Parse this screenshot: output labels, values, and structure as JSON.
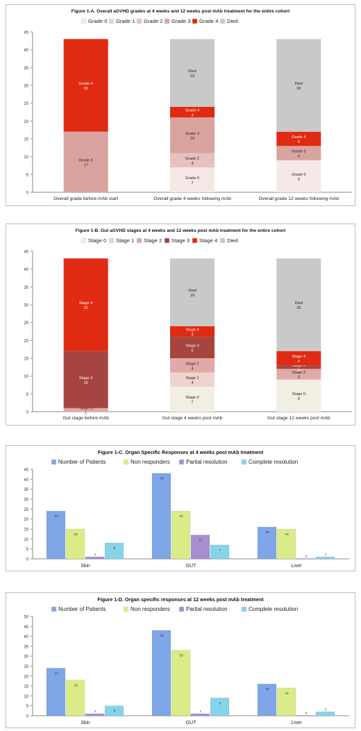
{
  "colors": {
    "grade0": "#f5e8e6",
    "grade1": "#f1d2cf",
    "grade2": "#e8c0bd",
    "grade3": "#d9a4a0",
    "grade4": "#e02a12",
    "died": "#c9c9c9",
    "stage0": "#f1efe4",
    "stage1": "#f1d2cf",
    "stage2": "#e1aaa6",
    "stage3": "#a6443f",
    "stage4": "#e02a12",
    "patients": "#7fa6e6",
    "non_responders": "#d9ec88",
    "partial": "#a88ed1",
    "complete": "#86d4ea",
    "axis": "#888888"
  },
  "chart_data": [
    {
      "type": "bar",
      "stacked": true,
      "title": "Figure 1-A. Overall aGVHD grades at 4 weeks and 12 weeks post mAb treatment for the entire cohort",
      "categories": [
        "Overall grade before mAb start",
        "Overall grade 4 weeks following mAb",
        "Overall grade 12 weeks following mAb"
      ],
      "ylim": [
        0,
        45
      ],
      "yticks": [
        "0",
        "5",
        "10",
        "15",
        "20",
        "25",
        "30",
        "35",
        "40",
        "45"
      ],
      "legend_position": "top",
      "legend": [
        "Grade 0",
        "Grade 1",
        "Grade 2",
        "Grade 3",
        "Grade 4",
        "Died"
      ],
      "series": [
        {
          "name": "Grade 0",
          "values": [
            0,
            7,
            9
          ]
        },
        {
          "name": "Grade 1",
          "values": [
            0,
            0,
            0
          ]
        },
        {
          "name": "Grade 2",
          "values": [
            0,
            4,
            0
          ]
        },
        {
          "name": "Grade 3",
          "values": [
            17,
            10,
            4
          ]
        },
        {
          "name": "Grade 4",
          "values": [
            26,
            3,
            4
          ]
        },
        {
          "name": "Died",
          "values": [
            0,
            19,
            26
          ]
        }
      ]
    },
    {
      "type": "bar",
      "stacked": true,
      "title": "Figure 1-B. Gut aGVHD stages at 4 weeks and 12 weeks post mAb treatment for the entire cohort",
      "categories": [
        "Gut stage before mAb",
        "Gut stage 4 weeks post mAb",
        "Gut stage 12 weeks post mAb"
      ],
      "ylim": [
        0,
        45
      ],
      "yticks": [
        "0",
        "5",
        "10",
        "15",
        "20",
        "25",
        "30",
        "35",
        "40",
        "45"
      ],
      "legend_position": "top",
      "legend": [
        "Stage 0",
        "Stage 1",
        "Stage 2",
        "Stage 3",
        "Stage 4",
        "Died"
      ],
      "series": [
        {
          "name": "Stage 0",
          "values": [
            0,
            7,
            9
          ]
        },
        {
          "name": "Stage 1",
          "values": [
            0,
            4,
            0
          ]
        },
        {
          "name": "Stage 2",
          "values": [
            1,
            4,
            3
          ]
        },
        {
          "name": "Stage 3",
          "values": [
            16,
            6,
            1
          ]
        },
        {
          "name": "Stage 4",
          "values": [
            26,
            3,
            4
          ]
        },
        {
          "name": "Died",
          "values": [
            0,
            19,
            26
          ]
        }
      ]
    },
    {
      "type": "bar",
      "title": "Figure 1-C. Organ Specific Responses at 4 weeks post mAb treatment",
      "categories": [
        "Skin",
        "GUT",
        "Liver"
      ],
      "ylim": [
        0,
        45
      ],
      "yticks": [
        "0",
        "5",
        "10",
        "15",
        "20",
        "25",
        "30",
        "35",
        "40",
        "45"
      ],
      "legend_position": "top",
      "legend": [
        "Number of Patients",
        "Non responders",
        "Partial resolution",
        "Complete resolution"
      ],
      "series": [
        {
          "name": "Number of Patients",
          "values": [
            24,
            43,
            16
          ]
        },
        {
          "name": "Non responders",
          "values": [
            15,
            24,
            15
          ]
        },
        {
          "name": "Partial resolution",
          "values": [
            1,
            12,
            0
          ]
        },
        {
          "name": "Complete resolution",
          "values": [
            8,
            7,
            1
          ]
        }
      ]
    },
    {
      "type": "bar",
      "title": "Figure 1-D. Organ specific responses at 12 weeks post mAb treatment",
      "categories": [
        "Skin",
        "GUT",
        "Liver"
      ],
      "ylim": [
        0,
        50
      ],
      "yticks": [
        "0",
        "5",
        "10",
        "15",
        "20",
        "25",
        "30",
        "35",
        "40",
        "45",
        "50"
      ],
      "legend_position": "top",
      "legend": [
        "Number of Patients",
        "Non responders",
        "Partial resolution",
        "Complete resolution"
      ],
      "series": [
        {
          "name": "Number of Patients",
          "values": [
            24,
            43,
            16
          ]
        },
        {
          "name": "Non responders",
          "values": [
            18,
            33,
            14
          ]
        },
        {
          "name": "Partial resolution",
          "values": [
            1,
            1,
            0
          ]
        },
        {
          "name": "Complete resolution",
          "values": [
            5,
            9,
            2
          ]
        }
      ]
    }
  ]
}
